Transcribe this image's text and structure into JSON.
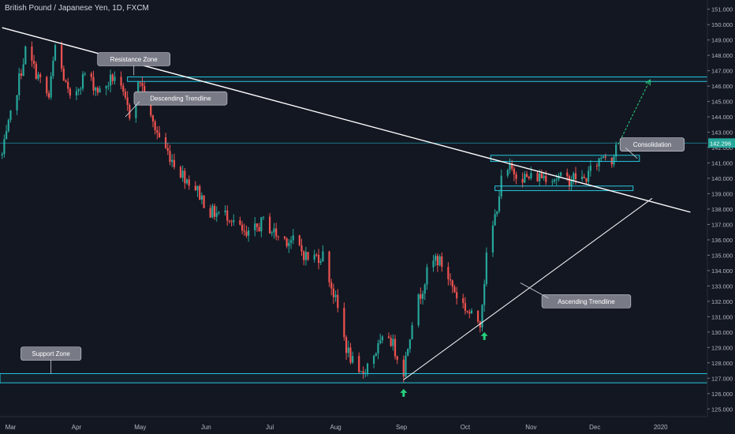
{
  "header": {
    "title": "British Pound / Japanese Yen, 1D, FXCM"
  },
  "colors": {
    "background": "#131722",
    "up": "#26a69a",
    "down": "#ef5350",
    "zone_line": "#26c6da",
    "trendline": "#ffffff",
    "callout_bg": "#787b86",
    "arrow": "#26d07c",
    "price_badge": "#26a69a",
    "axis_text": "#b2b5be"
  },
  "chart_data": {
    "type": "candlestick",
    "title": "British Pound / Japanese Yen, 1D, FXCM",
    "ylim": [
      124.5,
      151.6
    ],
    "y_ticks": [
      "151.000",
      "150.000",
      "149.000",
      "148.000",
      "147.000",
      "146.000",
      "145.000",
      "144.000",
      "143.000",
      "142.000",
      "141.000",
      "140.000",
      "139.000",
      "138.000",
      "137.000",
      "136.000",
      "135.000",
      "134.000",
      "133.000",
      "132.000",
      "131.000",
      "130.000",
      "129.000",
      "128.000",
      "127.000",
      "126.000",
      "125.000"
    ],
    "x_ticks": [
      "Mar",
      "Apr",
      "May",
      "Jun",
      "Jul",
      "Aug",
      "Sep",
      "Oct",
      "Nov",
      "Dec",
      "2020"
    ],
    "last_price": "142.296",
    "price_path": [
      {
        "d": "2019-02-25",
        "p": 141.5
      },
      {
        "d": "2019-03-08",
        "p": 148.3
      },
      {
        "d": "2019-03-19",
        "p": 145.2
      },
      {
        "d": "2019-03-22",
        "p": 148.6
      },
      {
        "d": "2019-03-29",
        "p": 145.0
      },
      {
        "d": "2019-04-05",
        "p": 146.8
      },
      {
        "d": "2019-04-12",
        "p": 145.6
      },
      {
        "d": "2019-04-19",
        "p": 146.7
      },
      {
        "d": "2019-04-26",
        "p": 144.2
      },
      {
        "d": "2019-05-01",
        "p": 146.4
      },
      {
        "d": "2019-05-06",
        "p": 143.8
      },
      {
        "d": "2019-05-13",
        "p": 141.9
      },
      {
        "d": "2019-05-20",
        "p": 140.4
      },
      {
        "d": "2019-05-27",
        "p": 139.4
      },
      {
        "d": "2019-06-03",
        "p": 137.8
      },
      {
        "d": "2019-06-12",
        "p": 137.6
      },
      {
        "d": "2019-06-20",
        "p": 136.1
      },
      {
        "d": "2019-06-28",
        "p": 137.2
      },
      {
        "d": "2019-07-05",
        "p": 136.2
      },
      {
        "d": "2019-07-12",
        "p": 135.9
      },
      {
        "d": "2019-07-19",
        "p": 134.8
      },
      {
        "d": "2019-07-26",
        "p": 135.0
      },
      {
        "d": "2019-08-02",
        "p": 131.5
      },
      {
        "d": "2019-08-06",
        "p": 129.0
      },
      {
        "d": "2019-08-12",
        "p": 127.0
      },
      {
        "d": "2019-08-20",
        "p": 128.8
      },
      {
        "d": "2019-08-26",
        "p": 129.8
      },
      {
        "d": "2019-09-02",
        "p": 127.5
      },
      {
        "d": "2019-09-06",
        "p": 130.8
      },
      {
        "d": "2019-09-13",
        "p": 133.8
      },
      {
        "d": "2019-09-17",
        "p": 134.8
      },
      {
        "d": "2019-09-20",
        "p": 134.4
      },
      {
        "d": "2019-09-27",
        "p": 132.4
      },
      {
        "d": "2019-10-04",
        "p": 131.0
      },
      {
        "d": "2019-10-08",
        "p": 130.7
      },
      {
        "d": "2019-10-11",
        "p": 134.8
      },
      {
        "d": "2019-10-15",
        "p": 137.5
      },
      {
        "d": "2019-10-18",
        "p": 139.8
      },
      {
        "d": "2019-10-22",
        "p": 140.6
      },
      {
        "d": "2019-10-30",
        "p": 140.0
      },
      {
        "d": "2019-11-08",
        "p": 140.2
      },
      {
        "d": "2019-11-18",
        "p": 139.9
      },
      {
        "d": "2019-11-22",
        "p": 140.1
      },
      {
        "d": "2019-11-26",
        "p": 139.9
      },
      {
        "d": "2019-12-02",
        "p": 141.0
      },
      {
        "d": "2019-12-05",
        "p": 141.6
      },
      {
        "d": "2019-12-09",
        "p": 141.2
      },
      {
        "d": "2019-12-11",
        "p": 142.3
      }
    ],
    "zones": [
      {
        "name": "resistance-zone",
        "y1": 146.6,
        "y2": 146.3
      },
      {
        "name": "support-zone",
        "y1": 127.3,
        "y2": 126.7
      }
    ],
    "reference_lines": [
      {
        "name": "current-price-line",
        "y": 142.296
      }
    ],
    "boxes": [
      {
        "name": "consolidation-top-box",
        "d1": "2019-10-13",
        "d2": "2019-12-22",
        "y1": 141.5,
        "y2": 141.1
      },
      {
        "name": "consolidation-bottom-box",
        "d1": "2019-10-15",
        "d2": "2019-12-19",
        "y1": 139.5,
        "y2": 139.2
      }
    ],
    "trendlines": [
      {
        "name": "descending-trendline",
        "d1": "2019-02-25",
        "y1": 149.8,
        "d2": "2020-01-15",
        "y2": 137.8
      },
      {
        "name": "ascending-trendline",
        "d1": "2019-09-02",
        "y1": 126.9,
        "d2": "2019-12-28",
        "y2": 138.7
      }
    ],
    "projection_arrow": {
      "d1": "2019-12-12",
      "y1": 142.2,
      "d2": "2019-12-27",
      "y2": 146.4
    },
    "signal_arrows": [
      {
        "name": "support-bounce-arrow",
        "d": "2019-09-02",
        "y": 126.3
      },
      {
        "name": "trendline-bounce-arrow",
        "d": "2019-10-10",
        "y": 130.0
      }
    ],
    "annotations": [
      {
        "name": "resistance-zone-label",
        "text": "Resistance Zone",
        "d": "2019-04-28",
        "y": 147.75
      },
      {
        "name": "descending-trendline-label",
        "text": "Descending Trendline",
        "d": "2019-05-20",
        "y": 145.2
      },
      {
        "name": "consolidation-label",
        "text": "Consolidation",
        "d": "2019-12-28",
        "y": 142.2
      },
      {
        "name": "ascending-trendline-label",
        "text": "Ascending Trendline",
        "d": "2019-11-27",
        "y": 132.0
      },
      {
        "name": "support-zone-label",
        "text": "Support Zone",
        "d": "2019-03-20",
        "y": 128.6
      }
    ]
  }
}
